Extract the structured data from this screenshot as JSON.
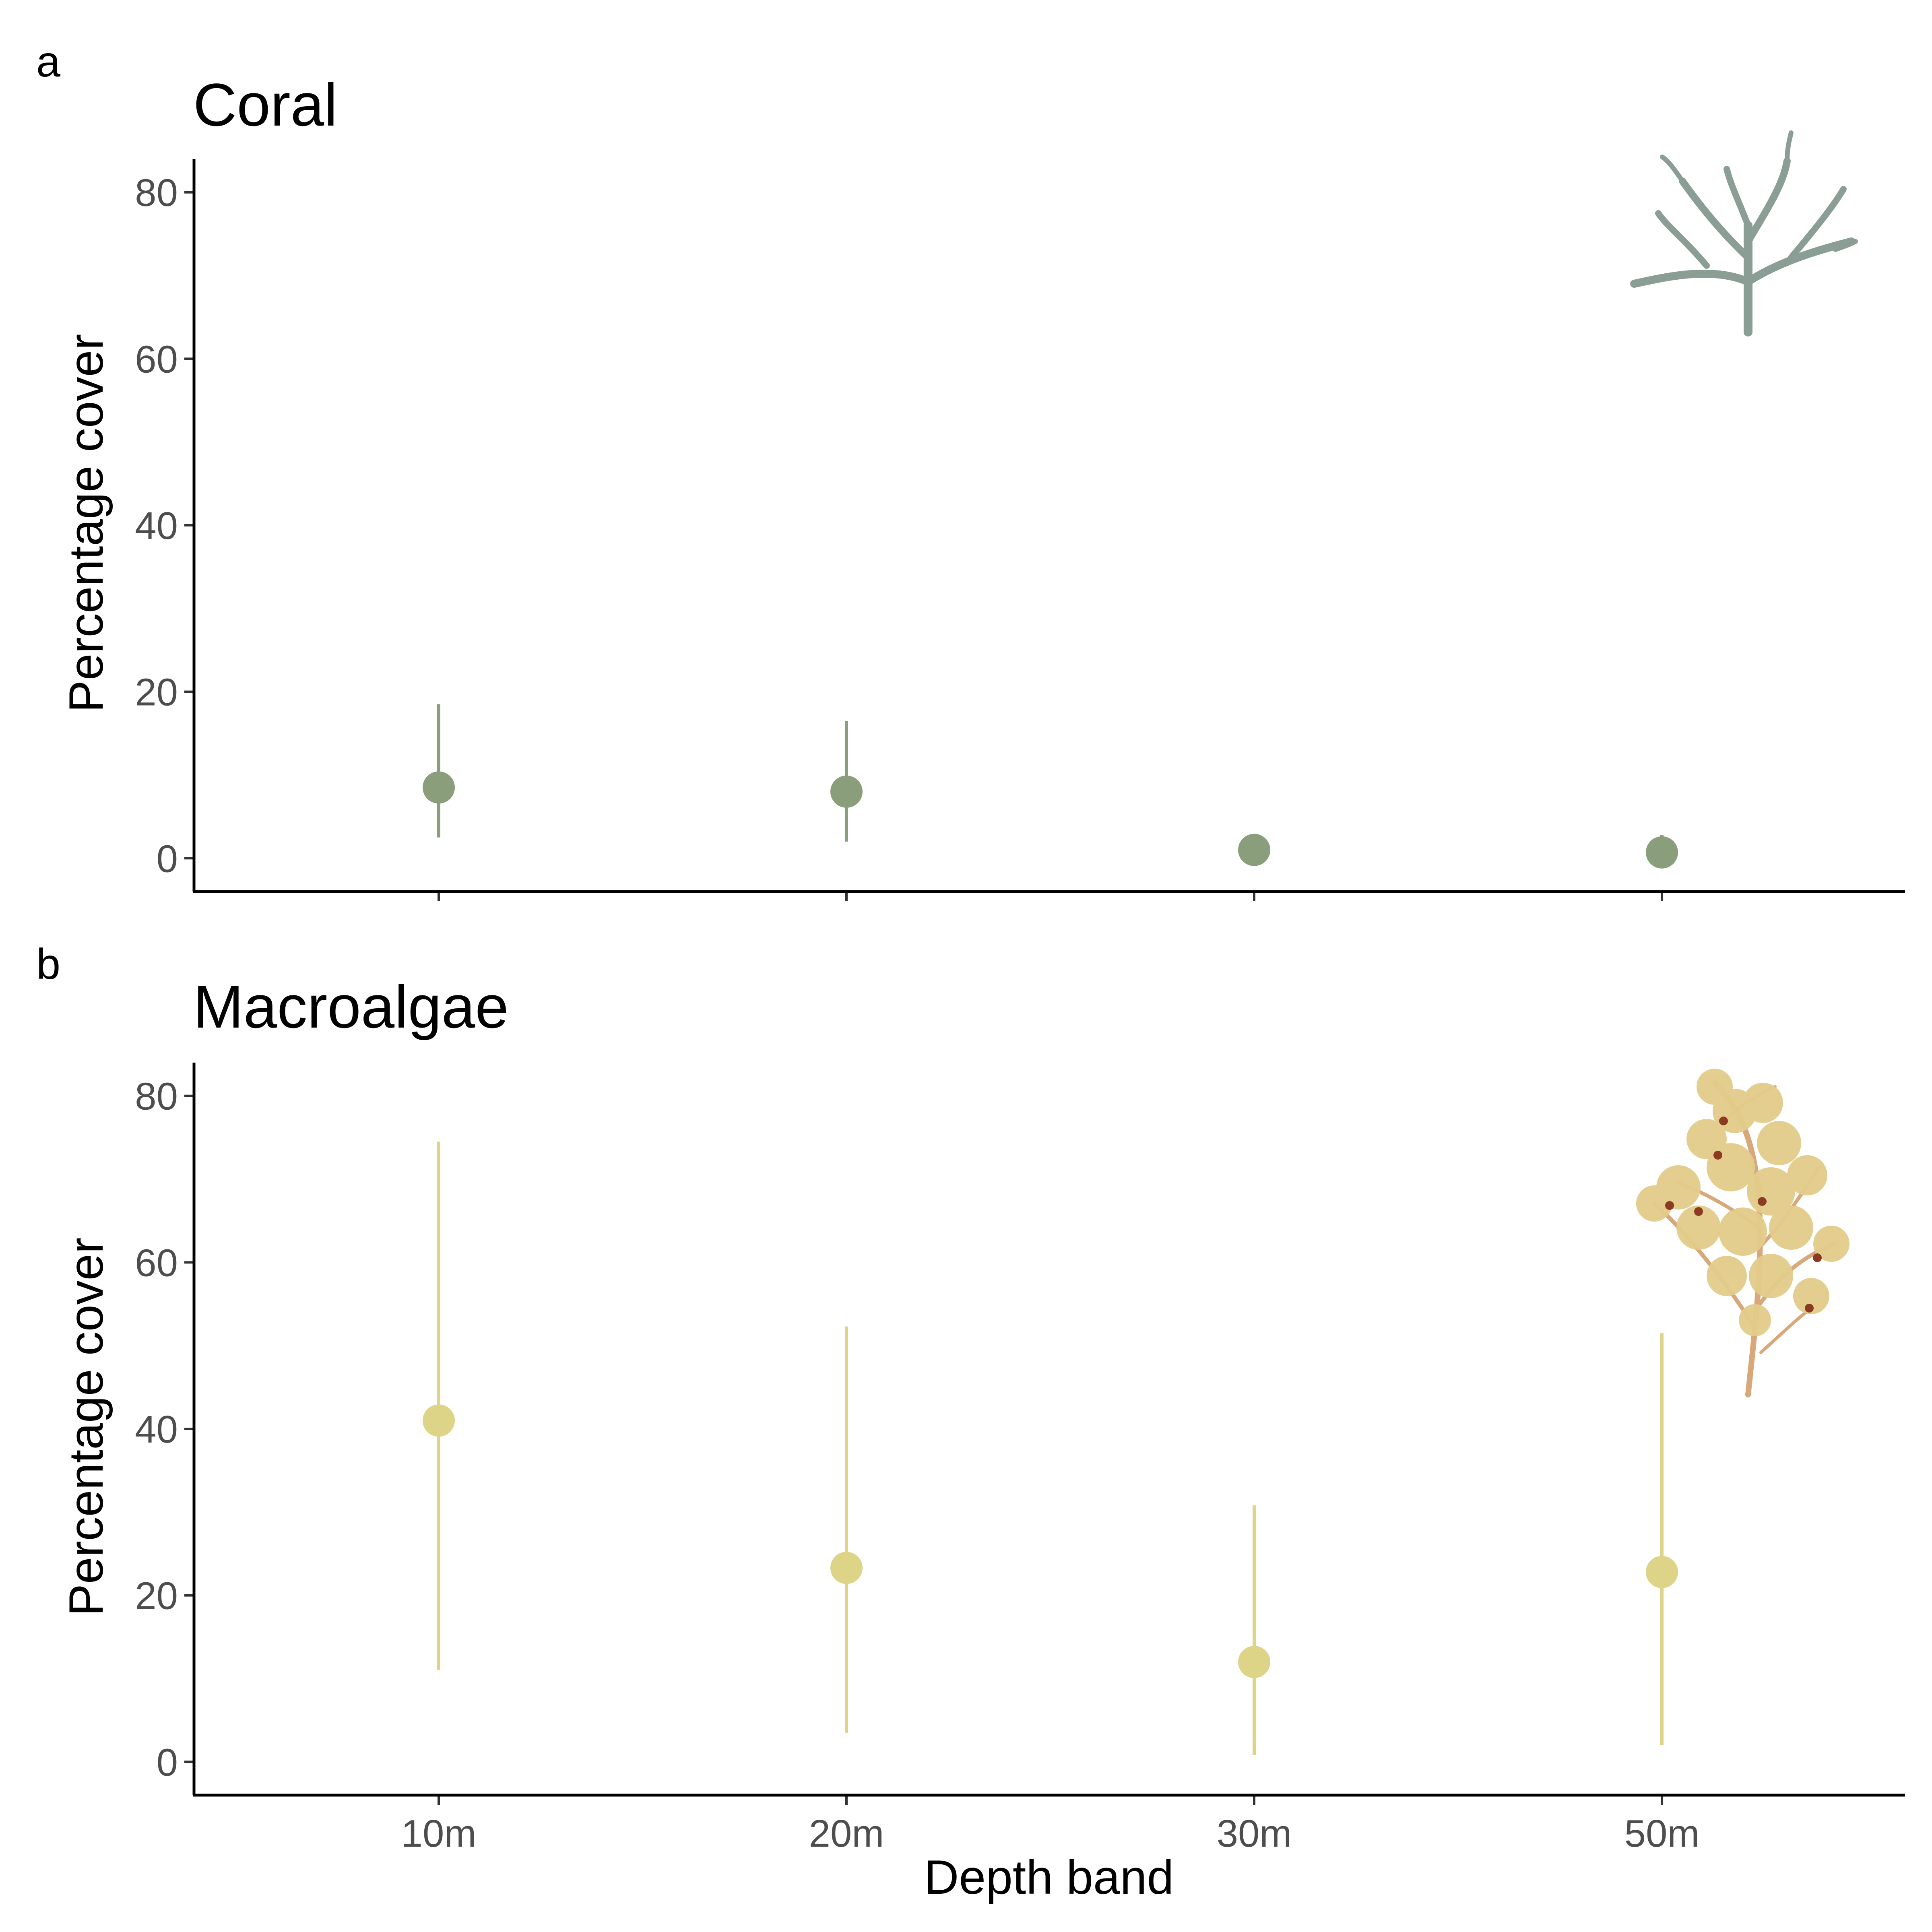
{
  "chart_data": [
    {
      "type": "scatter",
      "panel_label": "a",
      "title": "Coral",
      "xlabel": "",
      "ylabel": "Percentage cover",
      "categories": [
        "10m",
        "20m",
        "30m",
        "50m"
      ],
      "show_x_tick_labels": false,
      "ylim": [
        -4,
        84
      ],
      "yticks": [
        0,
        20,
        40,
        60,
        80
      ],
      "grid": false,
      "legend": "none",
      "color": "#8a9e7b",
      "icon": "branching-coral-icon",
      "points": [
        {
          "x": "10m",
          "y": 8.5,
          "lower": 2.5,
          "upper": 18.5
        },
        {
          "x": "20m",
          "y": 8.0,
          "lower": 2.0,
          "upper": 16.5
        },
        {
          "x": "30m",
          "y": 1.0,
          "lower": 0.2,
          "upper": 2.5
        },
        {
          "x": "50m",
          "y": 0.7,
          "lower": 0.1,
          "upper": 2.8
        }
      ]
    },
    {
      "type": "scatter",
      "panel_label": "b",
      "title": "Macroalgae",
      "xlabel": "Depth band",
      "ylabel": "Percentage cover",
      "categories": [
        "10m",
        "20m",
        "30m",
        "50m"
      ],
      "show_x_tick_labels": true,
      "ylim": [
        -4,
        84
      ],
      "yticks": [
        0,
        20,
        40,
        60,
        80
      ],
      "grid": false,
      "legend": "none",
      "color": "#ddd487",
      "icon": "seaweed-icon",
      "points": [
        {
          "x": "10m",
          "y": 41.0,
          "lower": 11.0,
          "upper": 74.5
        },
        {
          "x": "20m",
          "y": 23.3,
          "lower": 3.5,
          "upper": 52.3
        },
        {
          "x": "30m",
          "y": 12.0,
          "lower": 0.8,
          "upper": 30.8
        },
        {
          "x": "50m",
          "y": 22.8,
          "lower": 2.0,
          "upper": 51.5
        }
      ]
    }
  ]
}
